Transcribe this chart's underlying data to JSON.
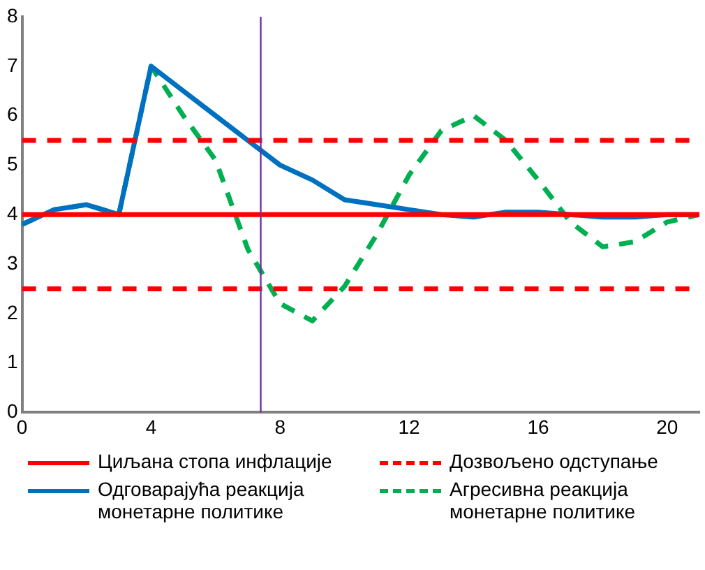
{
  "chart_data": {
    "type": "line",
    "x": [
      0,
      1,
      2,
      3,
      4,
      5,
      6,
      7,
      8,
      9,
      10,
      11,
      12,
      13,
      14,
      15,
      16,
      17,
      18,
      19,
      20,
      21
    ],
    "xlim": [
      0,
      21
    ],
    "xticks": [
      0,
      4,
      8,
      12,
      16,
      20
    ],
    "ylim": [
      0,
      8
    ],
    "yticks": [
      0,
      1,
      2,
      3,
      4,
      5,
      6,
      7,
      8
    ],
    "grid": false,
    "legend": "bottom",
    "marker": "none",
    "series": [
      {
        "name": "Циљана стопа инфлације",
        "color": "#ff0000",
        "line_style": "solid",
        "values": [
          4,
          4,
          4,
          4,
          4,
          4,
          4,
          4,
          4,
          4,
          4,
          4,
          4,
          4,
          4,
          4,
          4,
          4,
          4,
          4,
          4,
          4
        ]
      },
      {
        "name": "Дозвољено одступање",
        "color": "#ff0000",
        "line_style": "dashed",
        "values": [
          5.5,
          5.5,
          5.5,
          5.5,
          5.5,
          5.5,
          5.5,
          5.5,
          5.5,
          5.5,
          5.5,
          5.5,
          5.5,
          5.5,
          5.5,
          5.5,
          5.5,
          5.5,
          5.5,
          5.5,
          5.5,
          5.5
        ]
      },
      {
        "color": "#ff0000",
        "line_style": "dashed",
        "values": [
          2.5,
          2.5,
          2.5,
          2.5,
          2.5,
          2.5,
          2.5,
          2.5,
          2.5,
          2.5,
          2.5,
          2.5,
          2.5,
          2.5,
          2.5,
          2.5,
          2.5,
          2.5,
          2.5,
          2.5,
          2.5,
          2.5
        ]
      },
      {
        "name": "Одговарајућа реакција монетарне политике",
        "color": "#0070c0",
        "line_style": "solid",
        "values": [
          3.8,
          4.1,
          4.2,
          4.0,
          7.0,
          6.5,
          6.0,
          5.5,
          5.0,
          4.7,
          4.3,
          4.2,
          4.1,
          4.0,
          3.95,
          4.05,
          4.05,
          4.0,
          3.95,
          3.95,
          4.0,
          4.0
        ]
      },
      {
        "name": "Агресивна реакција монетарне политике",
        "color": "#00b050",
        "line_style": "dashed",
        "values": [
          3.8,
          4.1,
          4.2,
          4.0,
          7.0,
          6.0,
          5.1,
          3.3,
          2.2,
          1.85,
          2.55,
          3.6,
          4.8,
          5.7,
          6.0,
          5.5,
          4.7,
          3.85,
          3.35,
          3.45,
          3.85,
          4.0
        ]
      }
    ],
    "ref_lines": [
      {
        "axis": "x",
        "value": 7.4,
        "color": "#7030a0"
      }
    ]
  }
}
